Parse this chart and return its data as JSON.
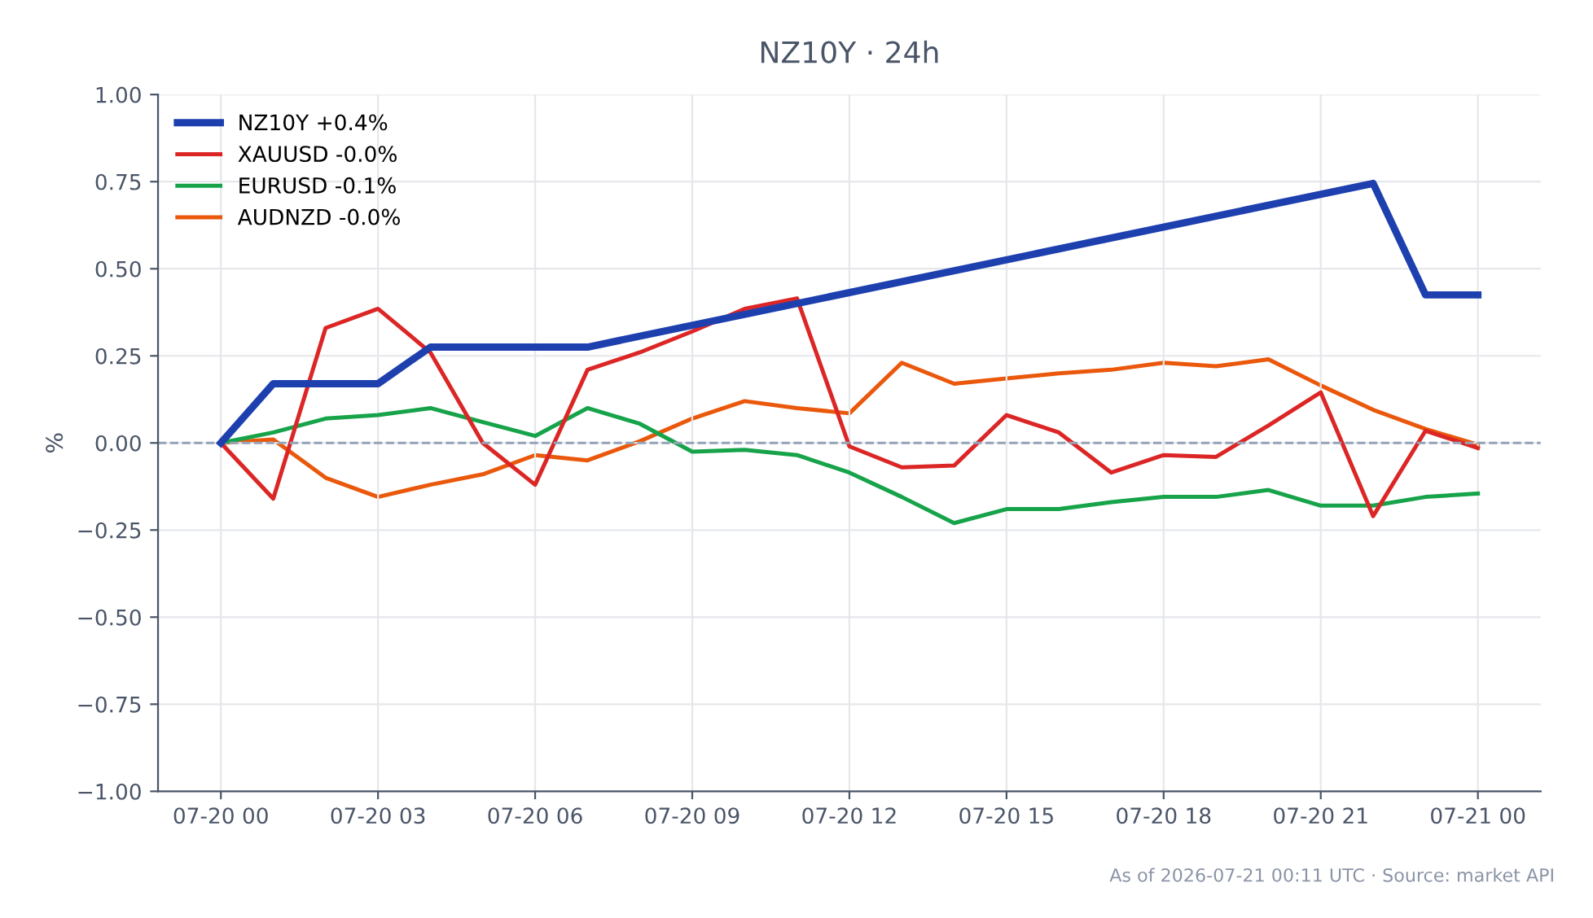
{
  "chart_data": {
    "type": "line",
    "title": "NZ10Y · 24h",
    "ylabel": "%",
    "x": [
      "2026-07-20T00:00",
      "2026-07-20T01:00",
      "2026-07-20T02:00",
      "2026-07-20T03:00",
      "2026-07-20T04:00",
      "2026-07-20T05:00",
      "2026-07-20T06:00",
      "2026-07-20T07:00",
      "2026-07-20T08:00",
      "2026-07-20T09:00",
      "2026-07-20T10:00",
      "2026-07-20T11:00",
      "2026-07-20T12:00",
      "2026-07-20T13:00",
      "2026-07-20T14:00",
      "2026-07-20T15:00",
      "2026-07-20T16:00",
      "2026-07-20T17:00",
      "2026-07-20T18:00",
      "2026-07-20T19:00",
      "2026-07-20T20:00",
      "2026-07-20T21:00",
      "2026-07-20T22:00",
      "2026-07-20T23:00",
      "2026-07-21T00:00"
    ],
    "series": [
      {
        "name": "NZ10Y +0.4%",
        "color": "#1e40af",
        "x": [
          "2026-07-20T00:00",
          "2026-07-20T01:00",
          "2026-07-20T02:00",
          "2026-07-20T03:00",
          "2026-07-20T04:00",
          "2026-07-20T07:00",
          "2026-07-20T22:00",
          "2026-07-20T23:00",
          "2026-07-21T00:00"
        ],
        "values": [
          0,
          0.17,
          0.17,
          0.17,
          0.275,
          0.275,
          0.745,
          0.425,
          0.425
        ]
      },
      {
        "name": "XAUUSD -0.0%",
        "color": "#dc2626",
        "values": [
          0,
          -0.16,
          0.33,
          0.385,
          0.26,
          0.0,
          -0.12,
          0.21,
          0.26,
          0.32,
          0.385,
          0.415,
          -0.01,
          -0.07,
          -0.065,
          0.08,
          0.03,
          -0.085,
          -0.035,
          -0.04,
          0.05,
          0.145,
          -0.21,
          0.035,
          -0.015
        ]
      },
      {
        "name": "EURUSD -0.1%",
        "color": "#16a34a",
        "values": [
          0,
          0.03,
          0.07,
          0.08,
          0.1,
          0.06,
          0.02,
          0.1,
          0.055,
          -0.025,
          -0.02,
          -0.035,
          -0.085,
          -0.155,
          -0.23,
          -0.19,
          -0.19,
          -0.17,
          -0.155,
          -0.155,
          -0.135,
          -0.18,
          -0.18,
          -0.155,
          -0.145
        ]
      },
      {
        "name": "AUDNZD -0.0%",
        "color": "#ea580c",
        "values": [
          0,
          0.01,
          -0.1,
          -0.155,
          -0.12,
          -0.09,
          -0.035,
          -0.05,
          0.005,
          0.07,
          0.12,
          0.1,
          0.085,
          0.23,
          0.17,
          0.185,
          0.2,
          0.21,
          0.23,
          0.22,
          0.24,
          0.165,
          0.095,
          0.04,
          -0.005
        ]
      }
    ],
    "xlim": [
      "2026-07-19T22:48",
      "2026-07-21T01:12"
    ],
    "xticks": [
      {
        "value": "2026-07-20T00:00",
        "label": "07-20 00"
      },
      {
        "value": "2026-07-20T03:00",
        "label": "07-20 03"
      },
      {
        "value": "2026-07-20T06:00",
        "label": "07-20 06"
      },
      {
        "value": "2026-07-20T09:00",
        "label": "07-20 09"
      },
      {
        "value": "2026-07-20T12:00",
        "label": "07-20 12"
      },
      {
        "value": "2026-07-20T15:00",
        "label": "07-20 15"
      },
      {
        "value": "2026-07-20T18:00",
        "label": "07-20 18"
      },
      {
        "value": "2026-07-20T21:00",
        "label": "07-20 21"
      },
      {
        "value": "2026-07-21T00:00",
        "label": "07-21 00"
      }
    ],
    "ylim": [
      -1,
      1
    ],
    "yticks": [
      {
        "value": -1,
        "label": "−1.00"
      },
      {
        "value": -0.75,
        "label": "−0.75"
      },
      {
        "value": -0.5,
        "label": "−0.50"
      },
      {
        "value": -0.25,
        "label": "−0.25"
      },
      {
        "value": 0,
        "label": "0.00"
      },
      {
        "value": 0.25,
        "label": "0.25"
      },
      {
        "value": 0.5,
        "label": "0.50"
      },
      {
        "value": 0.75,
        "label": "0.75"
      },
      {
        "value": 1,
        "label": "1.00"
      }
    ],
    "ref_lines": [
      {
        "axis": "y",
        "value": 0,
        "color": "#94a3b8",
        "line_style": "dashed"
      }
    ],
    "grid": true,
    "legend": "top left",
    "marker": "none",
    "line_style": "solid",
    "annotations": [
      "As of 2026-07-21 00:11 UTC · Source: market API"
    ]
  }
}
